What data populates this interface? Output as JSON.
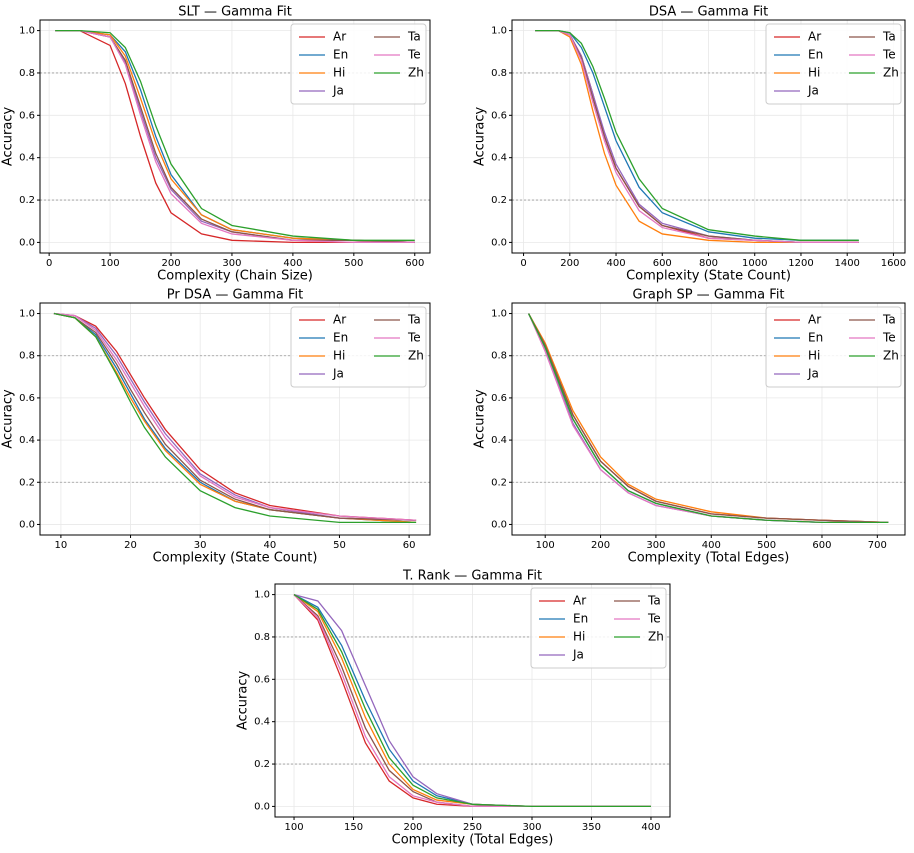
{
  "chart_data": [
    {
      "type": "line",
      "title": "SLT — Gamma Fit",
      "x_label": "Complexity (Chain Size)",
      "y_label": "Accuracy",
      "x": [
        10,
        50,
        100,
        125,
        150,
        175,
        200,
        250,
        300,
        400,
        500,
        600
      ],
      "series": [
        {
          "name": "Ar",
          "color": "#d62728",
          "values": [
            1,
            1,
            0.93,
            0.75,
            0.5,
            0.28,
            0.14,
            0.04,
            0.01,
            0,
            0,
            0
          ]
        },
        {
          "name": "En",
          "color": "#1f77b4",
          "values": [
            1,
            1,
            0.98,
            0.9,
            0.72,
            0.5,
            0.32,
            0.13,
            0.06,
            0.02,
            0.01,
            0
          ]
        },
        {
          "name": "Hi",
          "color": "#ff7f0e",
          "values": [
            1,
            1,
            0.98,
            0.88,
            0.68,
            0.47,
            0.3,
            0.13,
            0.06,
            0.02,
            0.01,
            0
          ]
        },
        {
          "name": "Ja",
          "color": "#9467bd",
          "values": [
            1,
            1,
            0.97,
            0.85,
            0.62,
            0.4,
            0.25,
            0.1,
            0.05,
            0.01,
            0.01,
            0
          ]
        },
        {
          "name": "Ta",
          "color": "#8c564b",
          "values": [
            1,
            1,
            0.97,
            0.86,
            0.64,
            0.42,
            0.26,
            0.11,
            0.05,
            0.01,
            0.01,
            0
          ]
        },
        {
          "name": "Te",
          "color": "#e377c2",
          "values": [
            1,
            1,
            0.97,
            0.84,
            0.6,
            0.38,
            0.23,
            0.09,
            0.04,
            0.01,
            0,
            0
          ]
        },
        {
          "name": "Zh",
          "color": "#2ca02c",
          "values": [
            1,
            1,
            0.99,
            0.92,
            0.76,
            0.55,
            0.37,
            0.16,
            0.08,
            0.03,
            0.01,
            0.01
          ]
        }
      ],
      "xlim": [
        -15,
        625
      ],
      "xticks": [
        0,
        100,
        200,
        300,
        400,
        500,
        600
      ],
      "ylim": [
        -0.05,
        1.05
      ],
      "yticks": [
        {
          "value": 0,
          "label": "0.0"
        },
        0.2,
        0.4,
        0.6,
        0.8,
        {
          "value": 1,
          "label": "1.0"
        }
      ],
      "reference_lines": [
        0.2,
        0.8
      ],
      "grid": true,
      "legend": "upper right"
    },
    {
      "type": "line",
      "title": "DSA — Gamma Fit",
      "x_label": "Complexity (State Count)",
      "y_label": "Accuracy",
      "x": [
        50,
        150,
        200,
        250,
        300,
        350,
        400,
        500,
        600,
        800,
        1000,
        1200,
        1450
      ],
      "series": [
        {
          "name": "Ar",
          "color": "#d62728",
          "values": [
            1,
            1,
            0.98,
            0.88,
            0.7,
            0.5,
            0.35,
            0.17,
            0.08,
            0.02,
            0.01,
            0,
            0
          ]
        },
        {
          "name": "En",
          "color": "#1f77b4",
          "values": [
            1,
            1,
            0.99,
            0.92,
            0.8,
            0.64,
            0.48,
            0.26,
            0.14,
            0.05,
            0.02,
            0.01,
            0.01
          ]
        },
        {
          "name": "Hi",
          "color": "#ff7f0e",
          "values": [
            1,
            1,
            0.97,
            0.84,
            0.62,
            0.42,
            0.27,
            0.1,
            0.04,
            0.01,
            0,
            0,
            0
          ]
        },
        {
          "name": "Ja",
          "color": "#9467bd",
          "values": [
            1,
            1,
            0.98,
            0.88,
            0.7,
            0.52,
            0.37,
            0.18,
            0.09,
            0.03,
            0.01,
            0,
            0
          ]
        },
        {
          "name": "Ta",
          "color": "#8c564b",
          "values": [
            1,
            1,
            0.98,
            0.87,
            0.68,
            0.5,
            0.35,
            0.17,
            0.08,
            0.03,
            0.01,
            0,
            0
          ]
        },
        {
          "name": "Te",
          "color": "#e377c2",
          "values": [
            1,
            1,
            0.98,
            0.86,
            0.66,
            0.48,
            0.33,
            0.15,
            0.07,
            0.02,
            0.01,
            0,
            0
          ]
        },
        {
          "name": "Zh",
          "color": "#2ca02c",
          "values": [
            1,
            1,
            0.99,
            0.94,
            0.83,
            0.68,
            0.52,
            0.3,
            0.16,
            0.06,
            0.03,
            0.01,
            0.01
          ]
        }
      ],
      "xlim": [
        -50,
        1650
      ],
      "xticks": [
        0,
        200,
        400,
        600,
        800,
        1000,
        1200,
        1400,
        1600
      ],
      "ylim": [
        -0.05,
        1.05
      ],
      "yticks": [
        {
          "value": 0,
          "label": "0.0"
        },
        0.2,
        0.4,
        0.6,
        0.8,
        {
          "value": 1,
          "label": "1.0"
        }
      ],
      "reference_lines": [
        0.2,
        0.8
      ],
      "grid": true,
      "legend": "upper right"
    },
    {
      "type": "line",
      "title": "Pr DSA — Gamma Fit",
      "x_label": "Complexity (State Count)",
      "y_label": "Accuracy",
      "x": [
        9,
        12,
        15,
        18,
        20,
        22,
        25,
        30,
        35,
        40,
        50,
        61
      ],
      "series": [
        {
          "name": "Ar",
          "color": "#d62728",
          "values": [
            1,
            0.99,
            0.94,
            0.82,
            0.71,
            0.6,
            0.45,
            0.26,
            0.15,
            0.09,
            0.04,
            0.02
          ]
        },
        {
          "name": "En",
          "color": "#1f77b4",
          "values": [
            1,
            0.98,
            0.9,
            0.74,
            0.62,
            0.5,
            0.36,
            0.2,
            0.11,
            0.07,
            0.03,
            0.01
          ]
        },
        {
          "name": "Hi",
          "color": "#ff7f0e",
          "values": [
            1,
            0.98,
            0.89,
            0.72,
            0.6,
            0.49,
            0.35,
            0.19,
            0.11,
            0.07,
            0.03,
            0.01
          ]
        },
        {
          "name": "Ja",
          "color": "#9467bd",
          "values": [
            1,
            0.99,
            0.93,
            0.8,
            0.69,
            0.58,
            0.43,
            0.24,
            0.14,
            0.08,
            0.03,
            0.02
          ]
        },
        {
          "name": "Ta",
          "color": "#8c564b",
          "values": [
            1,
            0.98,
            0.91,
            0.76,
            0.64,
            0.53,
            0.38,
            0.21,
            0.12,
            0.07,
            0.03,
            0.02
          ]
        },
        {
          "name": "Te",
          "color": "#e377c2",
          "values": [
            1,
            0.99,
            0.92,
            0.78,
            0.67,
            0.56,
            0.41,
            0.23,
            0.13,
            0.08,
            0.04,
            0.02
          ]
        },
        {
          "name": "Zh",
          "color": "#2ca02c",
          "values": [
            1,
            0.98,
            0.89,
            0.71,
            0.58,
            0.46,
            0.32,
            0.16,
            0.08,
            0.04,
            0.01,
            0.01
          ]
        }
      ],
      "xlim": [
        7,
        63
      ],
      "xticks": [
        10,
        20,
        30,
        40,
        50,
        60
      ],
      "ylim": [
        -0.05,
        1.05
      ],
      "yticks": [
        {
          "value": 0,
          "label": "0.0"
        },
        0.2,
        0.4,
        0.6,
        0.8,
        {
          "value": 1,
          "label": "1.0"
        }
      ],
      "reference_lines": [
        0.2,
        0.8
      ],
      "grid": true,
      "legend": "upper right"
    },
    {
      "type": "line",
      "title": "Graph SP — Gamma Fit",
      "x_label": "Complexity (Total Edges)",
      "y_label": "Accuracy",
      "x": [
        70,
        100,
        150,
        200,
        250,
        300,
        400,
        500,
        600,
        720
      ],
      "series": [
        {
          "name": "Ar",
          "color": "#d62728",
          "values": [
            1,
            0.85,
            0.52,
            0.3,
            0.18,
            0.11,
            0.05,
            0.03,
            0.02,
            0.01
          ]
        },
        {
          "name": "En",
          "color": "#1f77b4",
          "values": [
            1,
            0.84,
            0.5,
            0.28,
            0.16,
            0.1,
            0.04,
            0.02,
            0.01,
            0.01
          ]
        },
        {
          "name": "Hi",
          "color": "#ff7f0e",
          "values": [
            1,
            0.86,
            0.54,
            0.32,
            0.19,
            0.12,
            0.06,
            0.03,
            0.02,
            0.01
          ]
        },
        {
          "name": "Ja",
          "color": "#9467bd",
          "values": [
            1,
            0.83,
            0.48,
            0.26,
            0.15,
            0.09,
            0.04,
            0.02,
            0.01,
            0.01
          ]
        },
        {
          "name": "Ta",
          "color": "#8c564b",
          "values": [
            1,
            0.85,
            0.52,
            0.3,
            0.18,
            0.11,
            0.05,
            0.03,
            0.02,
            0.01
          ]
        },
        {
          "name": "Te",
          "color": "#e377c2",
          "values": [
            1,
            0.82,
            0.47,
            0.26,
            0.15,
            0.09,
            0.04,
            0.02,
            0.01,
            0.01
          ]
        },
        {
          "name": "Zh",
          "color": "#2ca02c",
          "values": [
            1,
            0.84,
            0.5,
            0.28,
            0.16,
            0.1,
            0.04,
            0.02,
            0.01,
            0.01
          ]
        }
      ],
      "xlim": [
        40,
        750
      ],
      "xticks": [
        100,
        200,
        300,
        400,
        500,
        600,
        700
      ],
      "ylim": [
        -0.05,
        1.05
      ],
      "yticks": [
        {
          "value": 0,
          "label": "0.0"
        },
        0.2,
        0.4,
        0.6,
        0.8,
        {
          "value": 1,
          "label": "1.0"
        }
      ],
      "reference_lines": [
        0.2,
        0.8
      ],
      "grid": true,
      "legend": "upper right"
    },
    {
      "type": "line",
      "title": "T. Rank — Gamma Fit",
      "x_label": "Complexity (Total Edges)",
      "y_label": "Accuracy",
      "x": [
        100,
        120,
        140,
        160,
        180,
        200,
        220,
        250,
        300,
        350,
        400
      ],
      "series": [
        {
          "name": "Ar",
          "color": "#d62728",
          "values": [
            1,
            0.88,
            0.6,
            0.3,
            0.12,
            0.04,
            0.01,
            0,
            0,
            0,
            0
          ]
        },
        {
          "name": "En",
          "color": "#1f77b4",
          "values": [
            1,
            0.94,
            0.76,
            0.5,
            0.27,
            0.12,
            0.05,
            0.01,
            0,
            0,
            0
          ]
        },
        {
          "name": "Hi",
          "color": "#ff7f0e",
          "values": [
            1,
            0.92,
            0.7,
            0.42,
            0.2,
            0.08,
            0.03,
            0.01,
            0,
            0,
            0
          ]
        },
        {
          "name": "Ja",
          "color": "#9467bd",
          "values": [
            1,
            0.97,
            0.83,
            0.57,
            0.31,
            0.14,
            0.06,
            0.01,
            0,
            0,
            0
          ]
        },
        {
          "name": "Ta",
          "color": "#8c564b",
          "values": [
            1,
            0.9,
            0.66,
            0.37,
            0.17,
            0.07,
            0.02,
            0,
            0,
            0,
            0
          ]
        },
        {
          "name": "Te",
          "color": "#e377c2",
          "values": [
            1,
            0.89,
            0.63,
            0.33,
            0.14,
            0.05,
            0.02,
            0,
            0,
            0,
            0
          ]
        },
        {
          "name": "Zh",
          "color": "#2ca02c",
          "values": [
            1,
            0.93,
            0.73,
            0.46,
            0.23,
            0.1,
            0.04,
            0.01,
            0,
            0,
            0
          ]
        }
      ],
      "xlim": [
        84,
        416
      ],
      "xticks": [
        100,
        150,
        200,
        250,
        300,
        350,
        400
      ],
      "ylim": [
        -0.05,
        1.05
      ],
      "yticks": [
        {
          "value": 0,
          "label": "0.0"
        },
        0.2,
        0.4,
        0.6,
        0.8,
        {
          "value": 1,
          "label": "1.0"
        }
      ],
      "reference_lines": [
        0.2,
        0.8
      ],
      "grid": true,
      "legend": "upper right"
    }
  ]
}
